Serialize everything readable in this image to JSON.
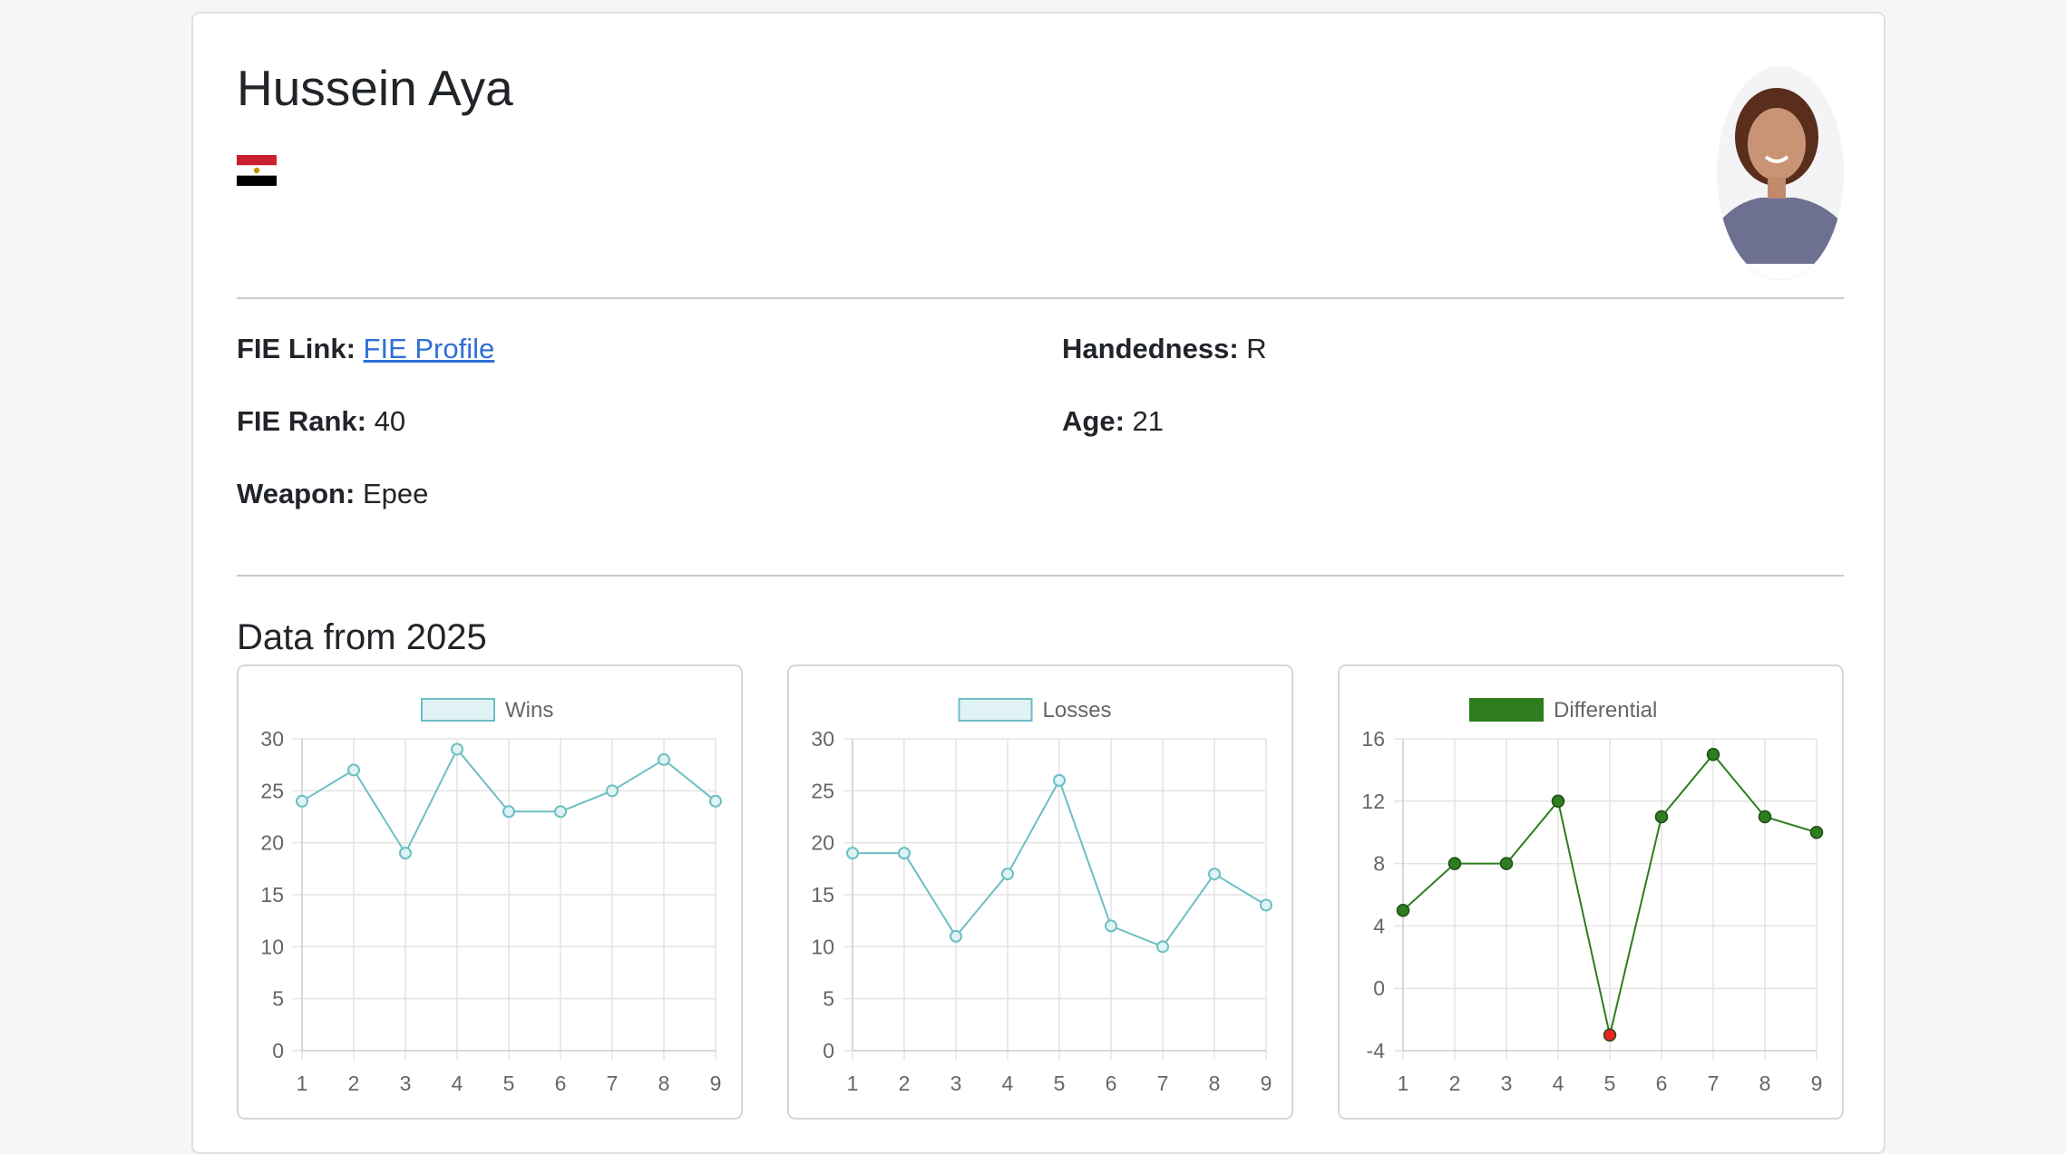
{
  "athlete": {
    "name": "Hussein Aya",
    "flag_icon": "egypt-flag-icon",
    "photo_icon": "athlete-photo"
  },
  "details": {
    "fie_link_label": "FIE Link:",
    "fie_link_text": "FIE Profile",
    "handedness_label": "Handedness:",
    "handedness_value": "R",
    "rank_label": "FIE Rank:",
    "rank_value": "40",
    "age_label": "Age:",
    "age_value": "21",
    "weapon_label": "Weapon:",
    "weapon_value": "Epee"
  },
  "section_title": "Data from 2025",
  "colors": {
    "teal_line": "#6cbfc3",
    "teal_fill": "#e0f2f3",
    "green": "#2e7d1f",
    "red": "#e8231f",
    "link": "#2f6fd6"
  },
  "chart_data": [
    {
      "type": "line",
      "x": [
        1,
        2,
        3,
        4,
        5,
        6,
        7,
        8,
        9
      ],
      "series": [
        {
          "name": "Wins",
          "values": [
            24,
            27,
            19,
            29,
            23,
            23,
            25,
            28,
            24
          ]
        }
      ],
      "ylim": [
        0,
        30
      ],
      "yticks": [
        0,
        5,
        10,
        15,
        20,
        25,
        30
      ],
      "grid": true,
      "legend": "top"
    },
    {
      "type": "line",
      "x": [
        1,
        2,
        3,
        4,
        5,
        6,
        7,
        8,
        9
      ],
      "series": [
        {
          "name": "Losses",
          "values": [
            19,
            19,
            11,
            17,
            26,
            12,
            10,
            17,
            14
          ]
        }
      ],
      "ylim": [
        0,
        30
      ],
      "yticks": [
        0,
        5,
        10,
        15,
        20,
        25,
        30
      ],
      "grid": true,
      "legend": "top"
    },
    {
      "type": "line",
      "x": [
        1,
        2,
        3,
        4,
        5,
        6,
        7,
        8,
        9
      ],
      "series": [
        {
          "name": "Differential",
          "values": [
            5,
            8,
            8,
            12,
            -3,
            11,
            15,
            11,
            10
          ]
        }
      ],
      "ylim": [
        -4,
        16
      ],
      "yticks": [
        -4,
        0,
        4,
        8,
        12,
        16
      ],
      "grid": true,
      "legend": "top"
    }
  ]
}
